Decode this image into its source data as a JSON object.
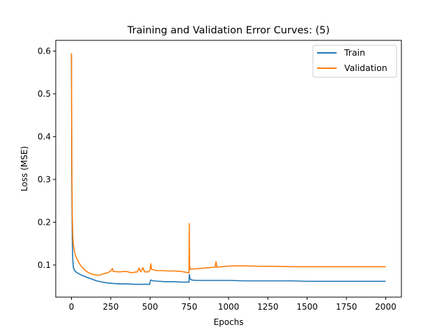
{
  "chart_data": {
    "type": "line",
    "title": "Training and Validation Error Curves: (5)",
    "xlabel": "Epochs",
    "ylabel": "Loss (MSE)",
    "xlim": [
      -100,
      2100
    ],
    "ylim": [
      0.025,
      0.625
    ],
    "xticks": [
      0,
      250,
      500,
      750,
      1000,
      1250,
      1500,
      1750,
      2000
    ],
    "yticks": [
      0.1,
      0.2,
      0.3,
      0.4,
      0.5,
      0.6
    ],
    "grid": false,
    "legend_position": "top-right",
    "series": [
      {
        "name": "Train",
        "color": "#1f77b4",
        "points": [
          [
            0,
            0.59
          ],
          [
            2,
            0.3
          ],
          [
            5,
            0.17
          ],
          [
            8,
            0.115
          ],
          [
            12,
            0.095
          ],
          [
            18,
            0.088
          ],
          [
            25,
            0.085
          ],
          [
            40,
            0.081
          ],
          [
            60,
            0.077
          ],
          [
            80,
            0.074
          ],
          [
            100,
            0.071
          ],
          [
            130,
            0.067
          ],
          [
            160,
            0.063
          ],
          [
            200,
            0.06
          ],
          [
            230,
            0.058
          ],
          [
            260,
            0.057
          ],
          [
            300,
            0.056
          ],
          [
            350,
            0.056
          ],
          [
            400,
            0.055
          ],
          [
            450,
            0.055
          ],
          [
            498,
            0.055
          ],
          [
            500,
            0.06
          ],
          [
            505,
            0.065
          ],
          [
            520,
            0.063
          ],
          [
            560,
            0.062
          ],
          [
            600,
            0.061
          ],
          [
            650,
            0.061
          ],
          [
            700,
            0.06
          ],
          [
            748,
            0.06
          ],
          [
            750,
            0.078
          ],
          [
            755,
            0.068
          ],
          [
            765,
            0.065
          ],
          [
            800,
            0.064
          ],
          [
            900,
            0.064
          ],
          [
            1000,
            0.064
          ],
          [
            1100,
            0.063
          ],
          [
            1200,
            0.063
          ],
          [
            1300,
            0.063
          ],
          [
            1400,
            0.063
          ],
          [
            1500,
            0.062
          ],
          [
            1600,
            0.062
          ],
          [
            1700,
            0.062
          ],
          [
            1800,
            0.062
          ],
          [
            1900,
            0.062
          ],
          [
            2000,
            0.062
          ]
        ]
      },
      {
        "name": "Validation",
        "color": "#ff7f0e",
        "points": [
          [
            0,
            0.595
          ],
          [
            2,
            0.35
          ],
          [
            5,
            0.22
          ],
          [
            8,
            0.17
          ],
          [
            12,
            0.148
          ],
          [
            20,
            0.13
          ],
          [
            30,
            0.118
          ],
          [
            45,
            0.107
          ],
          [
            60,
            0.098
          ],
          [
            80,
            0.09
          ],
          [
            100,
            0.084
          ],
          [
            120,
            0.08
          ],
          [
            150,
            0.077
          ],
          [
            175,
            0.076
          ],
          [
            200,
            0.079
          ],
          [
            230,
            0.082
          ],
          [
            250,
            0.086
          ],
          [
            260,
            0.092
          ],
          [
            265,
            0.085
          ],
          [
            300,
            0.084
          ],
          [
            350,
            0.085
          ],
          [
            380,
            0.082
          ],
          [
            420,
            0.084
          ],
          [
            430,
            0.093
          ],
          [
            440,
            0.084
          ],
          [
            455,
            0.094
          ],
          [
            465,
            0.084
          ],
          [
            490,
            0.084
          ],
          [
            500,
            0.088
          ],
          [
            505,
            0.103
          ],
          [
            510,
            0.09
          ],
          [
            540,
            0.087
          ],
          [
            580,
            0.087
          ],
          [
            620,
            0.086
          ],
          [
            660,
            0.086
          ],
          [
            700,
            0.085
          ],
          [
            730,
            0.083
          ],
          [
            745,
            0.082
          ],
          [
            748,
            0.082
          ],
          [
            750,
            0.197
          ],
          [
            752,
            0.1
          ],
          [
            756,
            0.09
          ],
          [
            780,
            0.091
          ],
          [
            820,
            0.092
          ],
          [
            880,
            0.094
          ],
          [
            915,
            0.095
          ],
          [
            920,
            0.108
          ],
          [
            925,
            0.095
          ],
          [
            980,
            0.097
          ],
          [
            1050,
            0.098
          ],
          [
            1100,
            0.098
          ],
          [
            1200,
            0.097
          ],
          [
            1300,
            0.097
          ],
          [
            1400,
            0.096
          ],
          [
            1500,
            0.096
          ],
          [
            1600,
            0.096
          ],
          [
            1700,
            0.096
          ],
          [
            1800,
            0.096
          ],
          [
            1900,
            0.096
          ],
          [
            2000,
            0.096
          ]
        ]
      }
    ]
  }
}
